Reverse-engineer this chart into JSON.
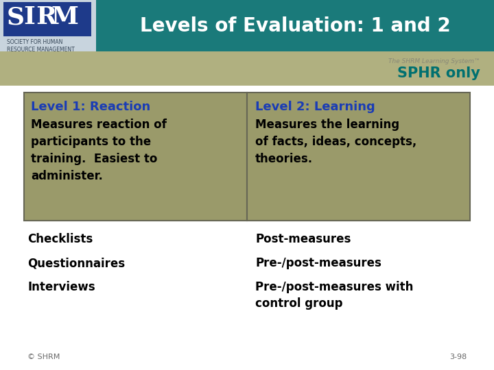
{
  "title": "Levels of Evaluation: 1 and 2",
  "sphr_only": "SPHR only",
  "shrm_learning": "The SHRM Learning System™",
  "header_bg": "#1a7a7a",
  "header_text_color": "#ffffff",
  "logo_bg_outer": "#c8d4de",
  "logo_bg_inner": "#2244aa",
  "body_bg": "#ffffff",
  "subheader_bg": "#b0b080",
  "box_bg": "#9a9a6a",
  "box_border": "#666655",
  "level1_heading": "Level 1: Reaction",
  "level1_heading_color": "#1a3cb5",
  "level1_body": "Measures reaction of\nparticipants to the\ntraining.  Easiest to\nadminister.",
  "level1_body_color": "#000000",
  "level2_heading": "Level 2: Learning",
  "level2_heading_color": "#1a3cb5",
  "level2_body": "Measures the learning\nof facts, ideas, concepts,\ntheories.",
  "level2_body_color": "#000000",
  "left_items": [
    "Checklists",
    "Questionnaires",
    "Interviews"
  ],
  "right_items": [
    "Post-measures",
    "Pre-/post-measures",
    "Pre-/post-measures with\ncontrol group"
  ],
  "items_color": "#000000",
  "footer_left": "© SHRM",
  "footer_right": "3-98",
  "footer_color": "#666666",
  "sphr_color": "#007070",
  "shrm_text_color": "#888877"
}
